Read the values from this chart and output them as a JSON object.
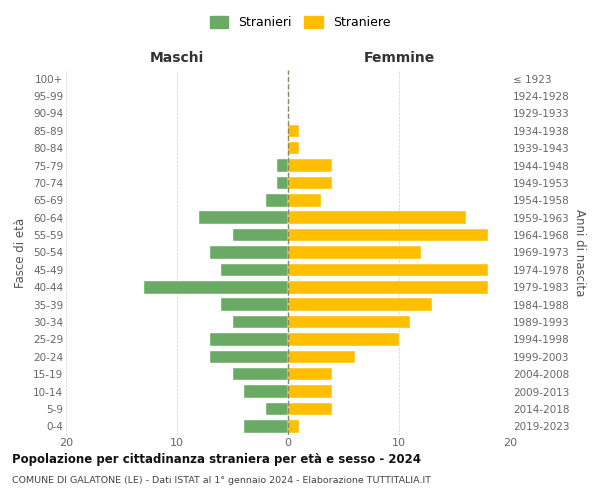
{
  "age_groups": [
    "0-4",
    "5-9",
    "10-14",
    "15-19",
    "20-24",
    "25-29",
    "30-34",
    "35-39",
    "40-44",
    "45-49",
    "50-54",
    "55-59",
    "60-64",
    "65-69",
    "70-74",
    "75-79",
    "80-84",
    "85-89",
    "90-94",
    "95-99",
    "100+"
  ],
  "birth_years": [
    "2019-2023",
    "2014-2018",
    "2009-2013",
    "2004-2008",
    "1999-2003",
    "1994-1998",
    "1989-1993",
    "1984-1988",
    "1979-1983",
    "1974-1978",
    "1969-1973",
    "1964-1968",
    "1959-1963",
    "1954-1958",
    "1949-1953",
    "1944-1948",
    "1939-1943",
    "1934-1938",
    "1929-1933",
    "1924-1928",
    "≤ 1923"
  ],
  "maschi": [
    4,
    2,
    4,
    5,
    7,
    7,
    5,
    6,
    13,
    6,
    7,
    5,
    8,
    2,
    1,
    1,
    0,
    0,
    0,
    0,
    0
  ],
  "femmine": [
    1,
    4,
    4,
    4,
    6,
    10,
    11,
    13,
    18,
    18,
    12,
    18,
    16,
    3,
    4,
    4,
    1,
    1,
    0,
    0,
    0
  ],
  "color_maschi": "#6aaa64",
  "color_femmine": "#ffbf00",
  "title": "Popolazione per cittadinanza straniera per età e sesso - 2024",
  "subtitle": "COMUNE DI GALATONE (LE) - Dati ISTAT al 1° gennaio 2024 - Elaborazione TUTTITALIA.IT",
  "xlabel_left": "Maschi",
  "xlabel_right": "Femmine",
  "ylabel_left": "Fasce di età",
  "ylabel_right": "Anni di nascita",
  "legend_maschi": "Stranieri",
  "legend_femmine": "Straniere",
  "xlim": 20,
  "background_color": "#ffffff",
  "grid_color": "#cccccc"
}
